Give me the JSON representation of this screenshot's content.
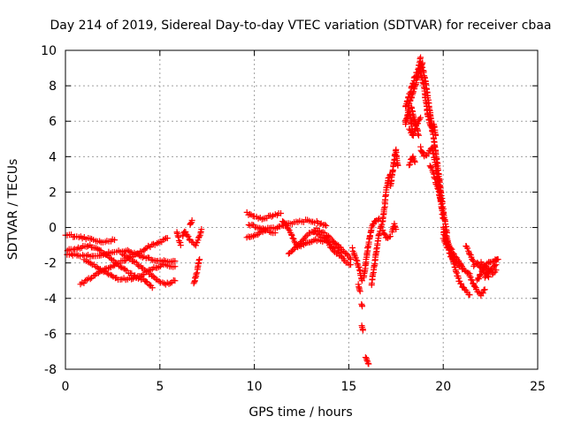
{
  "chart_data": {
    "type": "scatter",
    "title": "Day 214 of 2019, Sidereal Day-to-day VTEC variation (SDTVAR) for receiver cbaa",
    "xlabel": "GPS time / hours",
    "ylabel": "SDTVAR / TECUs",
    "xlim": [
      0,
      25
    ],
    "ylim": [
      -8,
      10
    ],
    "xticks": [
      0,
      5,
      10,
      15,
      20,
      25
    ],
    "yticks": [
      -8,
      -6,
      -4,
      -2,
      0,
      2,
      4,
      6,
      8,
      10
    ],
    "grid": true,
    "marker": "+",
    "series": [
      {
        "name": "SDTVAR",
        "color": "#ff0000",
        "tracks": [
          [
            [
              0.0,
              -0.4
            ],
            [
              0.5,
              -0.5
            ],
            [
              1.0,
              -0.6
            ],
            [
              1.5,
              -0.7
            ],
            [
              2.0,
              -0.8
            ],
            [
              2.6,
              -0.7
            ]
          ],
          [
            [
              0.0,
              -1.3
            ],
            [
              0.6,
              -1.2
            ],
            [
              1.2,
              -1.0
            ],
            [
              1.8,
              -1.3
            ],
            [
              2.4,
              -1.7
            ],
            [
              3.0,
              -2.3
            ],
            [
              3.6,
              -2.7
            ],
            [
              4.2,
              -3.0
            ],
            [
              4.6,
              -3.4
            ]
          ],
          [
            [
              0.0,
              -1.5
            ],
            [
              0.8,
              -1.6
            ],
            [
              1.6,
              -1.6
            ],
            [
              2.4,
              -1.4
            ],
            [
              3.2,
              -1.3
            ],
            [
              4.0,
              -1.6
            ],
            [
              4.8,
              -1.9
            ],
            [
              5.4,
              -1.9
            ],
            [
              5.8,
              -1.9
            ]
          ],
          [
            [
              0.8,
              -3.2
            ],
            [
              1.4,
              -2.8
            ],
            [
              2.0,
              -2.4
            ],
            [
              2.6,
              -2.1
            ],
            [
              3.2,
              -1.8
            ],
            [
              3.8,
              -1.5
            ],
            [
              4.4,
              -1.1
            ],
            [
              5.0,
              -0.8
            ],
            [
              5.4,
              -0.6
            ]
          ],
          [
            [
              1.0,
              -1.8
            ],
            [
              1.6,
              -2.2
            ],
            [
              2.2,
              -2.6
            ],
            [
              2.8,
              -2.9
            ],
            [
              3.4,
              -2.9
            ],
            [
              4.0,
              -2.7
            ],
            [
              4.6,
              -2.3
            ],
            [
              5.2,
              -2.1
            ],
            [
              5.8,
              -2.2
            ]
          ],
          [
            [
              3.0,
              -1.5
            ],
            [
              3.6,
              -1.9
            ],
            [
              4.2,
              -2.4
            ],
            [
              4.8,
              -2.9
            ],
            [
              5.3,
              -3.2
            ],
            [
              5.8,
              -3.0
            ]
          ],
          [
            [
              5.9,
              -0.3
            ],
            [
              6.0,
              -0.7
            ],
            [
              6.1,
              -1.0
            ]
          ],
          [
            [
              6.2,
              -0.5
            ],
            [
              6.3,
              -0.2
            ],
            [
              6.6,
              -0.7
            ],
            [
              6.9,
              -1.0
            ],
            [
              7.1,
              -0.5
            ],
            [
              7.2,
              -0.1
            ]
          ],
          [
            [
              6.6,
              0.2
            ],
            [
              6.7,
              0.4
            ]
          ],
          [
            [
              6.8,
              -3.2
            ],
            [
              7.0,
              -2.3
            ],
            [
              7.1,
              -1.8
            ]
          ],
          [
            [
              9.6,
              0.8
            ],
            [
              10.0,
              0.6
            ],
            [
              10.5,
              0.5
            ],
            [
              11.0,
              0.7
            ],
            [
              11.4,
              0.8
            ]
          ],
          [
            [
              9.7,
              0.2
            ],
            [
              10.2,
              0.0
            ],
            [
              10.7,
              -0.2
            ],
            [
              11.1,
              -0.3
            ]
          ],
          [
            [
              9.6,
              -0.6
            ],
            [
              10.1,
              -0.4
            ],
            [
              10.6,
              -0.1
            ],
            [
              11.2,
              0.0
            ],
            [
              11.8,
              0.2
            ],
            [
              12.3,
              0.3
            ],
            [
              12.8,
              0.4
            ],
            [
              13.3,
              0.3
            ],
            [
              13.8,
              0.1
            ]
          ],
          [
            [
              11.5,
              0.4
            ],
            [
              11.9,
              -0.3
            ],
            [
              12.3,
              -1.1
            ],
            [
              12.8,
              -0.9
            ],
            [
              13.3,
              -0.7
            ],
            [
              13.8,
              -0.8
            ],
            [
              14.2,
              -1.1
            ],
            [
              14.6,
              -1.4
            ]
          ],
          [
            [
              11.8,
              -1.5
            ],
            [
              12.3,
              -1.0
            ],
            [
              12.8,
              -0.4
            ],
            [
              13.3,
              -0.1
            ],
            [
              13.8,
              -0.4
            ],
            [
              14.3,
              -0.9
            ],
            [
              14.8,
              -1.4
            ],
            [
              15.1,
              -1.8
            ]
          ],
          [
            [
              13.2,
              -0.3
            ],
            [
              13.7,
              -0.6
            ],
            [
              14.2,
              -1.3
            ],
            [
              14.7,
              -1.8
            ],
            [
              15.1,
              -2.1
            ]
          ],
          [
            [
              15.2,
              -1.2
            ],
            [
              15.4,
              -1.8
            ],
            [
              15.6,
              -2.5
            ],
            [
              15.7,
              -3.0
            ]
          ],
          [
            [
              15.5,
              -3.2
            ],
            [
              15.6,
              -3.6
            ]
          ],
          [
            [
              15.7,
              -4.4
            ]
          ],
          [
            [
              15.7,
              -5.5
            ],
            [
              15.75,
              -5.8
            ]
          ],
          [
            [
              15.9,
              -7.3
            ],
            [
              16.0,
              -7.6
            ],
            [
              16.05,
              -7.7
            ]
          ],
          [
            [
              15.8,
              -2.8
            ],
            [
              15.9,
              -2.0
            ],
            [
              16.0,
              -1.2
            ],
            [
              16.1,
              -0.6
            ],
            [
              16.2,
              0.0
            ],
            [
              16.4,
              0.4
            ],
            [
              16.6,
              0.5
            ]
          ],
          [
            [
              16.2,
              -3.2
            ],
            [
              16.3,
              -2.5
            ],
            [
              16.4,
              -1.8
            ],
            [
              16.5,
              -1.0
            ],
            [
              16.6,
              -0.4
            ],
            [
              16.8,
              0.4
            ],
            [
              16.9,
              1.2
            ],
            [
              17.0,
              2.2
            ],
            [
              17.1,
              2.8
            ],
            [
              17.2,
              3.0
            ]
          ],
          [
            [
              16.8,
              -0.2
            ],
            [
              17.0,
              -0.6
            ],
            [
              17.2,
              -0.5
            ]
          ],
          [
            [
              17.2,
              2.3
            ],
            [
              17.3,
              3.0
            ],
            [
              17.4,
              3.8
            ],
            [
              17.5,
              4.4
            ]
          ],
          [
            [
              17.5,
              4.2
            ],
            [
              17.6,
              3.5
            ]
          ],
          [
            [
              17.3,
              -0.2
            ],
            [
              17.4,
              0.2
            ],
            [
              17.5,
              -0.1
            ]
          ],
          [
            [
              18.0,
              5.8
            ],
            [
              18.1,
              6.3
            ],
            [
              18.2,
              7.0
            ],
            [
              18.4,
              7.6
            ],
            [
              18.6,
              8.3
            ],
            [
              18.8,
              9.0
            ],
            [
              18.9,
              9.3
            ]
          ],
          [
            [
              18.0,
              6.8
            ],
            [
              18.1,
              7.2
            ],
            [
              18.3,
              7.8
            ],
            [
              18.5,
              8.5
            ],
            [
              18.7,
              9.0
            ],
            [
              18.8,
              9.6
            ]
          ],
          [
            [
              18.0,
              6.0
            ],
            [
              18.2,
              6.5
            ],
            [
              18.3,
              6.0
            ],
            [
              18.4,
              5.2
            ]
          ],
          [
            [
              18.2,
              5.5
            ],
            [
              18.4,
              5.2
            ],
            [
              18.6,
              5.8
            ],
            [
              18.8,
              6.2
            ]
          ],
          [
            [
              18.3,
              6.8
            ],
            [
              18.5,
              6.0
            ],
            [
              18.7,
              5.2
            ]
          ],
          [
            [
              18.2,
              3.5
            ],
            [
              18.3,
              3.8
            ],
            [
              18.4,
              4.0
            ],
            [
              18.5,
              3.7
            ]
          ],
          [
            [
              18.8,
              9.2
            ],
            [
              18.9,
              9.0
            ],
            [
              19.0,
              8.6
            ],
            [
              19.1,
              8.0
            ],
            [
              19.2,
              7.2
            ],
            [
              19.3,
              6.5
            ],
            [
              19.4,
              5.8
            ],
            [
              19.5,
              5.0
            ],
            [
              19.6,
              4.3
            ],
            [
              19.7,
              3.5
            ],
            [
              19.8,
              2.6
            ],
            [
              19.9,
              1.8
            ],
            [
              20.0,
              1.0
            ],
            [
              20.1,
              0.3
            ],
            [
              20.2,
              -0.3
            ]
          ],
          [
            [
              18.8,
              4.5
            ],
            [
              18.9,
              4.2
            ],
            [
              19.0,
              4.0
            ],
            [
              19.2,
              4.2
            ],
            [
              19.4,
              4.5
            ],
            [
              19.5,
              4.0
            ],
            [
              19.6,
              3.5
            ],
            [
              19.7,
              2.8
            ],
            [
              19.8,
              2.0
            ],
            [
              19.9,
              1.2
            ],
            [
              20.0,
              0.5
            ]
          ],
          [
            [
              18.8,
              8.8
            ],
            [
              19.0,
              7.8
            ],
            [
              19.1,
              7.0
            ],
            [
              19.2,
              6.2
            ],
            [
              19.4,
              5.5
            ],
            [
              19.5,
              5.8
            ],
            [
              19.6,
              5.2
            ]
          ],
          [
            [
              19.3,
              3.5
            ],
            [
              19.5,
              3.0
            ],
            [
              19.7,
              2.2
            ],
            [
              19.9,
              1.5
            ]
          ],
          [
            [
              20.0,
              0.0
            ],
            [
              20.2,
              -0.6
            ],
            [
              20.4,
              -1.4
            ],
            [
              20.6,
              -2.2
            ],
            [
              20.8,
              -2.9
            ],
            [
              21.0,
              -3.3
            ],
            [
              21.2,
              -3.6
            ],
            [
              21.4,
              -3.8
            ]
          ],
          [
            [
              20.0,
              -0.6
            ],
            [
              20.2,
              -1.1
            ],
            [
              20.4,
              -1.6
            ],
            [
              20.6,
              -1.9
            ],
            [
              20.8,
              -2.1
            ],
            [
              21.0,
              -2.3
            ],
            [
              21.2,
              -2.5
            ],
            [
              21.4,
              -2.6
            ]
          ],
          [
            [
              20.0,
              -0.3
            ],
            [
              20.2,
              -0.8
            ],
            [
              20.4,
              -1.2
            ],
            [
              20.6,
              -1.6
            ],
            [
              20.8,
              -1.9
            ],
            [
              21.0,
              -2.2
            ]
          ],
          [
            [
              21.2,
              -1.0
            ],
            [
              21.4,
              -1.5
            ],
            [
              21.6,
              -1.9
            ]
          ],
          [
            [
              21.4,
              -2.7
            ],
            [
              21.6,
              -3.2
            ],
            [
              21.8,
              -3.6
            ],
            [
              22.0,
              -3.8
            ],
            [
              22.2,
              -3.5
            ]
          ],
          [
            [
              21.6,
              -2.2
            ],
            [
              21.8,
              -2.0
            ],
            [
              22.0,
              -2.3
            ],
            [
              22.2,
              -2.5
            ],
            [
              22.4,
              -2.8
            ]
          ],
          [
            [
              21.8,
              -3.0
            ],
            [
              22.0,
              -2.6
            ],
            [
              22.2,
              -2.2
            ],
            [
              22.4,
              -2.0
            ],
            [
              22.6,
              -1.9
            ],
            [
              22.8,
              -1.8
            ],
            [
              22.9,
              -1.8
            ]
          ],
          [
            [
              22.0,
              -2.0
            ],
            [
              22.2,
              -2.2
            ],
            [
              22.4,
              -2.4
            ],
            [
              22.6,
              -2.6
            ],
            [
              22.8,
              -2.4
            ]
          ],
          [
            [
              22.2,
              -2.8
            ],
            [
              22.4,
              -2.5
            ],
            [
              22.6,
              -2.3
            ],
            [
              22.8,
              -2.1
            ]
          ]
        ]
      }
    ]
  }
}
